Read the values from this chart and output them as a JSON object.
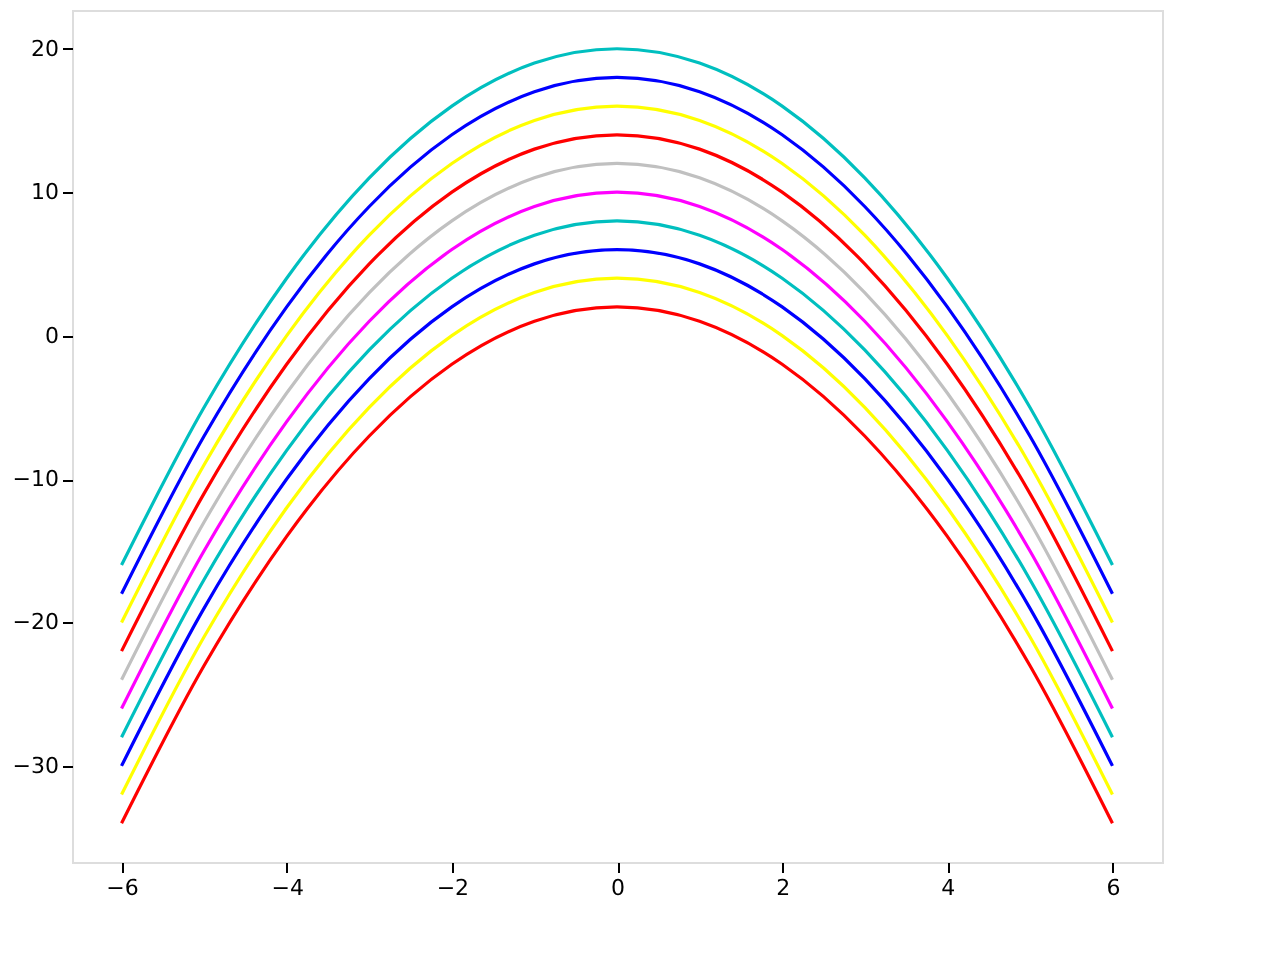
{
  "chart_data": {
    "type": "line",
    "x": [
      -6,
      -5,
      -4,
      -3,
      -2,
      -1,
      0,
      1,
      2,
      3,
      4,
      5,
      6
    ],
    "series": [
      {
        "color": "#ff0000",
        "values": [
          -34,
          -23,
          -14,
          -7,
          -2,
          1,
          2,
          1,
          -2,
          -7,
          -14,
          -23,
          -34
        ]
      },
      {
        "color": "#ffff00",
        "values": [
          -32,
          -21,
          -12,
          -5,
          0,
          3,
          4,
          3,
          0,
          -5,
          -12,
          -21,
          -32
        ]
      },
      {
        "color": "#0000ff",
        "values": [
          -30,
          -19,
          -10,
          -3,
          2,
          5,
          6,
          5,
          2,
          -3,
          -10,
          -19,
          -30
        ]
      },
      {
        "color": "#00bfbf",
        "values": [
          -28,
          -17,
          -8,
          -1,
          4,
          7,
          8,
          7,
          4,
          -1,
          -8,
          -17,
          -28
        ]
      },
      {
        "color": "#ff00ff",
        "values": [
          -26,
          -15,
          -6,
          1,
          6,
          9,
          10,
          9,
          6,
          1,
          -6,
          -15,
          -26
        ]
      },
      {
        "color": "#c0c0c0",
        "values": [
          -24,
          -13,
          -4,
          3,
          8,
          11,
          12,
          11,
          8,
          3,
          -4,
          -13,
          -24
        ]
      },
      {
        "color": "#ff0000",
        "values": [
          -22,
          -11,
          -2,
          5,
          10,
          13,
          14,
          13,
          10,
          5,
          -2,
          -11,
          -22
        ]
      },
      {
        "color": "#ffff00",
        "values": [
          -20,
          -9,
          0,
          7,
          12,
          15,
          16,
          15,
          12,
          7,
          0,
          -9,
          -20
        ]
      },
      {
        "color": "#0000ff",
        "values": [
          -18,
          -7,
          2,
          9,
          14,
          17,
          18,
          17,
          14,
          9,
          2,
          -7,
          -18
        ]
      },
      {
        "color": "#00bfbf",
        "values": [
          -16,
          -5,
          4,
          11,
          16,
          19,
          20,
          19,
          16,
          11,
          4,
          -5,
          -16
        ]
      }
    ],
    "xlim": [
      -6.6,
      6.6
    ],
    "xticks": [
      -6,
      -4,
      -2,
      0,
      2,
      4,
      6
    ],
    "ylim": [
      -36.7,
      22.7
    ],
    "yticks": [
      -30,
      -20,
      -10,
      0,
      10,
      20
    ],
    "grid": false,
    "legend": false,
    "marker": "none",
    "line_style": "solid"
  }
}
